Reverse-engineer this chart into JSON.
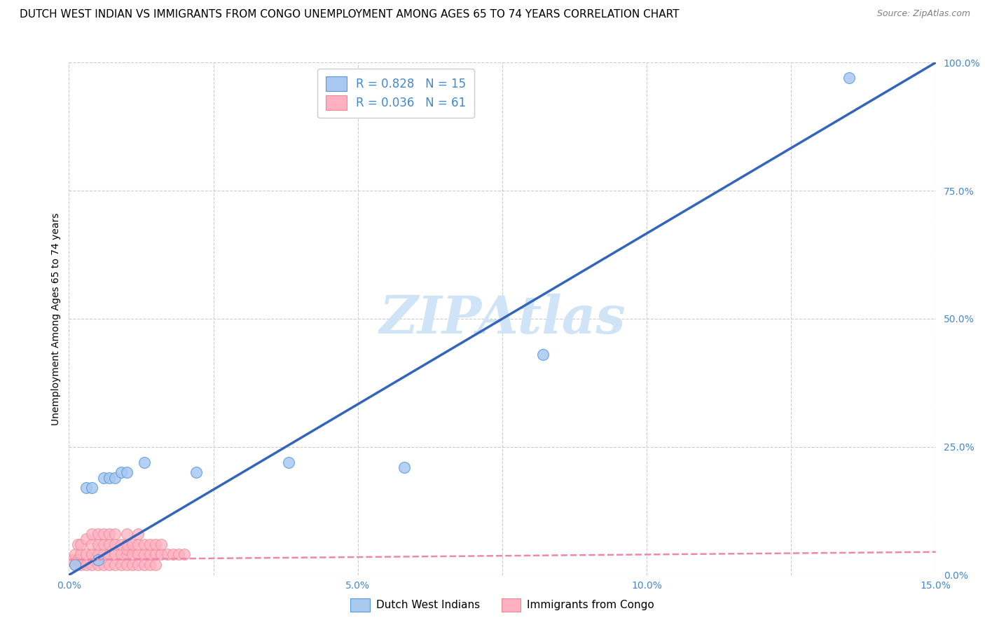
{
  "title": "DUTCH WEST INDIAN VS IMMIGRANTS FROM CONGO UNEMPLOYMENT AMONG AGES 65 TO 74 YEARS CORRELATION CHART",
  "source": "Source: ZipAtlas.com",
  "ylabel": "Unemployment Among Ages 65 to 74 years",
  "xlim": [
    0.0,
    0.15
  ],
  "ylim": [
    0.0,
    1.0
  ],
  "xticks": [
    0.0,
    0.025,
    0.05,
    0.075,
    0.1,
    0.125,
    0.15
  ],
  "xtick_labels": [
    "0.0%",
    "",
    "5.0%",
    "",
    "10.0%",
    "",
    "15.0%"
  ],
  "yticks": [
    0.0,
    0.25,
    0.5,
    0.75,
    1.0
  ],
  "ytick_labels": [
    "0.0%",
    "25.0%",
    "50.0%",
    "75.0%",
    "100.0%"
  ],
  "blue_scatter_x": [
    0.001,
    0.003,
    0.004,
    0.005,
    0.006,
    0.007,
    0.008,
    0.009,
    0.01,
    0.013,
    0.022,
    0.038,
    0.058,
    0.082,
    0.135
  ],
  "blue_scatter_y": [
    0.02,
    0.17,
    0.17,
    0.03,
    0.19,
    0.19,
    0.19,
    0.2,
    0.2,
    0.22,
    0.2,
    0.22,
    0.21,
    0.43,
    0.97
  ],
  "pink_scatter_x": [
    0.0005,
    0.001,
    0.001,
    0.0015,
    0.0015,
    0.002,
    0.002,
    0.002,
    0.003,
    0.003,
    0.003,
    0.004,
    0.004,
    0.004,
    0.004,
    0.005,
    0.005,
    0.005,
    0.005,
    0.006,
    0.006,
    0.006,
    0.006,
    0.007,
    0.007,
    0.007,
    0.007,
    0.008,
    0.008,
    0.008,
    0.008,
    0.009,
    0.009,
    0.009,
    0.01,
    0.01,
    0.01,
    0.01,
    0.01,
    0.011,
    0.011,
    0.011,
    0.012,
    0.012,
    0.012,
    0.012,
    0.013,
    0.013,
    0.013,
    0.014,
    0.014,
    0.014,
    0.015,
    0.015,
    0.015,
    0.016,
    0.016,
    0.017,
    0.018,
    0.019,
    0.02
  ],
  "pink_scatter_y": [
    0.03,
    0.02,
    0.04,
    0.03,
    0.06,
    0.02,
    0.04,
    0.06,
    0.02,
    0.04,
    0.07,
    0.02,
    0.04,
    0.06,
    0.08,
    0.02,
    0.04,
    0.06,
    0.08,
    0.02,
    0.04,
    0.06,
    0.08,
    0.02,
    0.04,
    0.06,
    0.08,
    0.02,
    0.04,
    0.06,
    0.08,
    0.02,
    0.04,
    0.06,
    0.02,
    0.04,
    0.05,
    0.06,
    0.08,
    0.02,
    0.04,
    0.06,
    0.02,
    0.04,
    0.06,
    0.08,
    0.02,
    0.04,
    0.06,
    0.02,
    0.04,
    0.06,
    0.02,
    0.04,
    0.06,
    0.04,
    0.06,
    0.04,
    0.04,
    0.04,
    0.04
  ],
  "blue_color": "#a8c8f0",
  "blue_edge": "#5599dd",
  "pink_color": "#ffb0c0",
  "pink_edge": "#ee8899",
  "blue_line_x": [
    0.0,
    0.15
  ],
  "blue_line_y": [
    0.0,
    1.0
  ],
  "blue_line_color": "#3366bb",
  "pink_line_x": [
    0.0,
    0.15
  ],
  "pink_line_y": [
    0.03,
    0.045
  ],
  "pink_line_color": "#ee88aa",
  "blue_R": 0.828,
  "blue_N": 15,
  "pink_R": 0.036,
  "pink_N": 61,
  "watermark": "ZIPAtlas",
  "watermark_color": "#d0e4f8",
  "tick_color": "#4488cc",
  "background_color": "#ffffff",
  "grid_color": "#cccccc",
  "title_fontsize": 11,
  "ylabel_fontsize": 10,
  "tick_fontsize": 10,
  "legend_fontsize": 12,
  "source_text": "Source: ZipAtlas.com"
}
